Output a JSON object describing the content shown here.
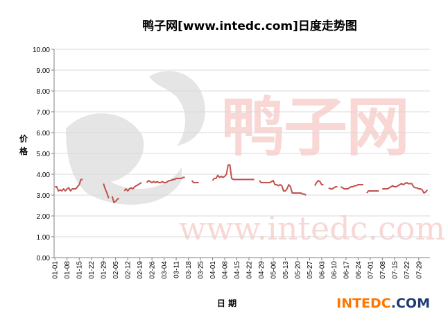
{
  "colors": {
    "line": "#c0504d",
    "grid": "#d9d9d9",
    "axis": "#808080",
    "brand_orange": "#ff7700",
    "brand_dark": "#1f3b73",
    "wm_red": "#f4b8b4",
    "wm_gray": "#cfcfcf"
  },
  "brand": {
    "part1": "INTEDC",
    "part2": ".COM"
  },
  "watermark": {
    "char1": "鸭",
    "char2": "子",
    "char3": "网",
    "url": "www.intedc.com"
  },
  "chart_data": {
    "type": "line",
    "title": "鸭子网[www.intedc.com]日度走势图",
    "xlabel": "日期",
    "ylabel": "价格",
    "ylim": [
      0,
      10
    ],
    "yticks": [
      "0.00",
      "1.00",
      "2.00",
      "3.00",
      "4.00",
      "5.00",
      "6.00",
      "7.00",
      "8.00",
      "9.00",
      "10.00"
    ],
    "grid": true,
    "legend": "none",
    "xticks": [
      "01-01",
      "01-08",
      "01-15",
      "01-22",
      "01-29",
      "02-05",
      "02-12",
      "02-19",
      "02-26",
      "03-04",
      "03-11",
      "03-18",
      "03-25",
      "04-01",
      "04-08",
      "04-15",
      "04-22",
      "04-29",
      "05-06",
      "05-13",
      "05-20",
      "05-27",
      "06-03",
      "06-10",
      "06-17",
      "06-24",
      "07-01",
      "07-08",
      "07-15",
      "07-22",
      "07-29"
    ],
    "series": [
      {
        "name": "",
        "segments": [
          [
            [
              1,
              3.4
            ],
            [
              2,
              3.4
            ],
            [
              3,
              3.2
            ],
            [
              4,
              3.25
            ],
            [
              5,
              3.2
            ],
            [
              6,
              3.3
            ],
            [
              7,
              3.2
            ],
            [
              8,
              3.3
            ],
            [
              9,
              3.35
            ],
            [
              10,
              3.2
            ],
            [
              11,
              3.3
            ],
            [
              12,
              3.3
            ],
            [
              13,
              3.3
            ],
            [
              14,
              3.4
            ],
            [
              15,
              3.5
            ],
            [
              16,
              3.75
            ],
            [
              17,
              3.75
            ]
          ],
          [
            [
              29,
              3.55
            ],
            [
              30,
              3.3
            ],
            [
              31,
              3.1
            ],
            [
              32,
              2.85
            ]
          ],
          [
            [
              34,
              2.95
            ],
            [
              35,
              2.65
            ],
            [
              36,
              2.7
            ],
            [
              37,
              2.8
            ],
            [
              38,
              2.85
            ]
          ],
          [
            [
              41,
              3.2
            ],
            [
              42,
              3.3
            ],
            [
              43,
              3.2
            ],
            [
              44,
              3.3
            ],
            [
              45,
              3.35
            ],
            [
              46,
              3.3
            ],
            [
              47,
              3.4
            ],
            [
              48,
              3.45
            ],
            [
              49,
              3.5
            ],
            [
              50,
              3.55
            ],
            [
              51,
              3.6
            ]
          ],
          [
            [
              54,
              3.6
            ],
            [
              55,
              3.7
            ],
            [
              56,
              3.65
            ],
            [
              57,
              3.6
            ],
            [
              58,
              3.65
            ],
            [
              59,
              3.6
            ],
            [
              60,
              3.65
            ],
            [
              61,
              3.6
            ],
            [
              62,
              3.6
            ],
            [
              63,
              3.65
            ],
            [
              64,
              3.6
            ],
            [
              65,
              3.6
            ],
            [
              66,
              3.65
            ],
            [
              67,
              3.7
            ],
            [
              68,
              3.7
            ],
            [
              69,
              3.75
            ],
            [
              70,
              3.75
            ],
            [
              71,
              3.8
            ],
            [
              72,
              3.8
            ],
            [
              73,
              3.8
            ],
            [
              74,
              3.8
            ],
            [
              75,
              3.85
            ],
            [
              76,
              3.85
            ]
          ],
          [
            [
              80,
              3.7
            ],
            [
              81,
              3.6
            ],
            [
              82,
              3.6
            ],
            [
              83,
              3.6
            ],
            [
              84,
              3.6
            ]
          ],
          [
            [
              92,
              3.7
            ],
            [
              93,
              3.8
            ],
            [
              94,
              3.8
            ],
            [
              95,
              3.95
            ],
            [
              96,
              3.85
            ],
            [
              97,
              3.9
            ],
            [
              98,
              3.85
            ],
            [
              99,
              3.9
            ],
            [
              100,
              4.0
            ],
            [
              101,
              4.45
            ],
            [
              102,
              4.45
            ],
            [
              103,
              3.8
            ],
            [
              104,
              3.75
            ],
            [
              105,
              3.75
            ],
            [
              106,
              3.75
            ],
            [
              107,
              3.75
            ],
            [
              108,
              3.75
            ],
            [
              109,
              3.75
            ],
            [
              110,
              3.75
            ],
            [
              111,
              3.75
            ],
            [
              112,
              3.75
            ],
            [
              113,
              3.75
            ],
            [
              114,
              3.75
            ],
            [
              115,
              3.75
            ],
            [
              116,
              3.75
            ]
          ],
          [
            [
              119,
              3.7
            ],
            [
              120,
              3.6
            ],
            [
              121,
              3.6
            ],
            [
              122,
              3.6
            ],
            [
              123,
              3.6
            ],
            [
              124,
              3.6
            ],
            [
              125,
              3.6
            ],
            [
              126,
              3.65
            ],
            [
              127,
              3.7
            ],
            [
              128,
              3.5
            ],
            [
              129,
              3.5
            ],
            [
              130,
              3.45
            ],
            [
              131,
              3.5
            ],
            [
              132,
              3.45
            ],
            [
              133,
              3.2
            ],
            [
              134,
              3.2
            ],
            [
              135,
              3.3
            ],
            [
              136,
              3.5
            ],
            [
              137,
              3.4
            ],
            [
              138,
              3.1
            ],
            [
              139,
              3.1
            ],
            [
              140,
              3.1
            ],
            [
              141,
              3.1
            ],
            [
              142,
              3.1
            ],
            [
              143,
              3.1
            ],
            [
              144,
              3.05
            ],
            [
              145,
              3.05
            ],
            [
              146,
              3.0
            ]
          ],
          [
            [
              151,
              3.45
            ],
            [
              152,
              3.6
            ],
            [
              153,
              3.7
            ],
            [
              154,
              3.65
            ],
            [
              155,
              3.5
            ],
            [
              156,
              3.5
            ]
          ],
          [
            [
              159,
              3.35
            ],
            [
              160,
              3.3
            ],
            [
              161,
              3.3
            ],
            [
              162,
              3.35
            ],
            [
              163,
              3.4
            ],
            [
              164,
              3.4
            ]
          ],
          [
            [
              166,
              3.4
            ],
            [
              167,
              3.35
            ],
            [
              168,
              3.3
            ],
            [
              169,
              3.3
            ],
            [
              170,
              3.3
            ],
            [
              171,
              3.35
            ],
            [
              172,
              3.4
            ],
            [
              173,
              3.4
            ],
            [
              174,
              3.45
            ],
            [
              175,
              3.45
            ],
            [
              176,
              3.5
            ],
            [
              177,
              3.5
            ],
            [
              178,
              3.5
            ],
            [
              179,
              3.5
            ]
          ],
          [
            [
              181,
              3.1
            ],
            [
              182,
              3.2
            ],
            [
              183,
              3.2
            ],
            [
              184,
              3.2
            ],
            [
              185,
              3.2
            ],
            [
              186,
              3.2
            ],
            [
              187,
              3.2
            ],
            [
              188,
              3.2
            ]
          ],
          [
            [
              190,
              3.3
            ],
            [
              191,
              3.3
            ],
            [
              192,
              3.3
            ],
            [
              193,
              3.3
            ],
            [
              194,
              3.35
            ],
            [
              195,
              3.4
            ],
            [
              196,
              3.45
            ],
            [
              197,
              3.4
            ],
            [
              198,
              3.4
            ],
            [
              199,
              3.45
            ],
            [
              200,
              3.5
            ],
            [
              201,
              3.55
            ],
            [
              202,
              3.5
            ],
            [
              203,
              3.55
            ],
            [
              204,
              3.6
            ],
            [
              205,
              3.55
            ],
            [
              206,
              3.55
            ],
            [
              207,
              3.55
            ],
            [
              208,
              3.4
            ],
            [
              209,
              3.35
            ],
            [
              210,
              3.35
            ],
            [
              211,
              3.3
            ],
            [
              212,
              3.3
            ],
            [
              213,
              3.25
            ],
            [
              214,
              3.1
            ],
            [
              215,
              3.15
            ],
            [
              216,
              3.25
            ]
          ]
        ]
      }
    ]
  }
}
